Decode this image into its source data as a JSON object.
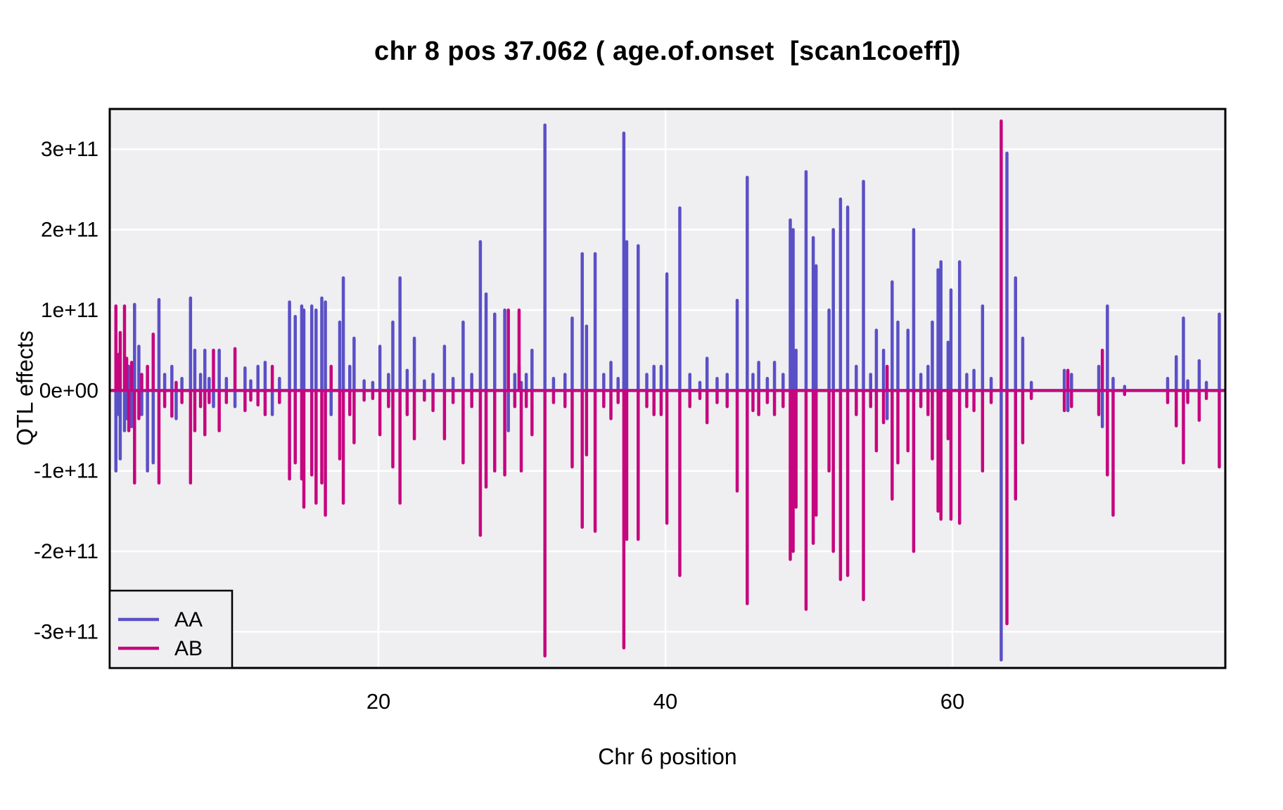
{
  "window": {
    "background": "#FFFFFF"
  },
  "chart_data": {
    "type": "line",
    "subtype": "qtl-coefficient-spike-plot",
    "title": "chr 8 pos 37.062 ( age.of.onset  [scan1coeff])",
    "xlabel": "Chr 6 position",
    "ylabel": "QTL effects",
    "xlim": [
      1.27,
      79.02
    ],
    "ylim": [
      -345000000000.0,
      350000000000.0
    ],
    "x_ticks": [
      {
        "v": 20,
        "label": "20"
      },
      {
        "v": 40,
        "label": "40"
      },
      {
        "v": 60,
        "label": "60"
      }
    ],
    "y_ticks": [
      {
        "v": 300000000000.0,
        "label": "3e+11"
      },
      {
        "v": 200000000000.0,
        "label": "2e+11"
      },
      {
        "v": 100000000000.0,
        "label": "1e+11"
      },
      {
        "v": 0,
        "label": "0e+00"
      },
      {
        "v": -100000000000.0,
        "label": "-1e+11"
      },
      {
        "v": -200000000000.0,
        "label": "-2e+11"
      },
      {
        "v": -300000000000.0,
        "label": "-3e+11"
      }
    ],
    "grid": {
      "on": true,
      "color": "#FFFFFF",
      "panel_bg": "#EFEEF0",
      "border_color": "#000000"
    },
    "legend": {
      "position": "inside-bottom-left",
      "entries": [
        {
          "label": "AA",
          "color": "#5A50C6"
        },
        {
          "label": "AB",
          "color": "#C5067F"
        }
      ]
    },
    "baseline": 0,
    "value_scale": 100000000000.0,
    "series": [
      {
        "name": "AA",
        "color": "#5A50C6"
      },
      {
        "name": "AB",
        "color": "#C5067F"
      }
    ],
    "markers_note": "Each marker is [chr6_position, AA_effect, AB_effect] with effects in units of value_scale (1e11); both series also run along the 0 baseline.",
    "markers": [
      [
        1.7,
        -1.0,
        1.05
      ],
      [
        1.9,
        -0.3,
        0.45
      ],
      [
        2.0,
        -0.85,
        0.72
      ],
      [
        2.3,
        -0.5,
        1.05
      ],
      [
        2.45,
        -0.35,
        0.4
      ],
      [
        2.6,
        0.3,
        -0.5
      ],
      [
        2.8,
        -0.45,
        0.35
      ],
      [
        3.0,
        1.07,
        -1.15
      ],
      [
        3.3,
        0.55,
        -0.35
      ],
      [
        3.5,
        -0.3,
        0.2
      ],
      [
        3.9,
        -1.0,
        0.3
      ],
      [
        4.3,
        -0.9,
        0.7
      ],
      [
        4.7,
        1.13,
        -1.15
      ],
      [
        5.1,
        0.2,
        -0.2
      ],
      [
        5.6,
        0.3,
        -0.32
      ],
      [
        5.9,
        -0.35,
        0.1
      ],
      [
        6.3,
        0.15,
        -0.15
      ],
      [
        6.9,
        1.15,
        -1.15
      ],
      [
        7.2,
        0.5,
        -0.5
      ],
      [
        7.6,
        0.2,
        -0.2
      ],
      [
        7.9,
        0.5,
        -0.55
      ],
      [
        8.2,
        0.15,
        -0.15
      ],
      [
        8.5,
        -0.2,
        0.5
      ],
      [
        8.9,
        0.5,
        -0.5
      ],
      [
        9.4,
        0.15,
        -0.15
      ],
      [
        10.0,
        -0.2,
        0.52
      ],
      [
        10.7,
        0.28,
        -0.25
      ],
      [
        11.1,
        0.12,
        -0.12
      ],
      [
        11.6,
        0.3,
        -0.18
      ],
      [
        12.1,
        0.35,
        -0.3
      ],
      [
        12.6,
        -0.3,
        0.3
      ],
      [
        13.1,
        0.15,
        -0.15
      ],
      [
        13.8,
        1.1,
        -1.1
      ],
      [
        14.2,
        0.92,
        -0.9
      ],
      [
        14.65,
        1.05,
        -1.1
      ],
      [
        14.8,
        1.0,
        -1.45
      ],
      [
        15.35,
        1.05,
        -1.05
      ],
      [
        15.65,
        1.0,
        -1.4
      ],
      [
        16.05,
        1.15,
        -1.15
      ],
      [
        16.3,
        1.1,
        -1.55
      ],
      [
        16.7,
        -0.3,
        0.3
      ],
      [
        17.3,
        0.85,
        -0.85
      ],
      [
        17.55,
        1.4,
        -1.4
      ],
      [
        18.0,
        0.3,
        -0.3
      ],
      [
        18.3,
        0.65,
        -0.65
      ],
      [
        19.0,
        0.12,
        -0.12
      ],
      [
        19.6,
        0.1,
        -0.1
      ],
      [
        20.1,
        0.55,
        -0.55
      ],
      [
        20.7,
        0.2,
        -0.2
      ],
      [
        21.0,
        0.85,
        -0.95
      ],
      [
        21.5,
        1.4,
        -1.4
      ],
      [
        22.0,
        0.25,
        -0.3
      ],
      [
        22.5,
        0.65,
        -0.6
      ],
      [
        23.2,
        0.12,
        -0.12
      ],
      [
        23.8,
        0.2,
        -0.25
      ],
      [
        24.6,
        0.55,
        -0.6
      ],
      [
        25.2,
        0.15,
        -0.15
      ],
      [
        25.9,
        0.85,
        -0.9
      ],
      [
        26.5,
        0.2,
        -0.2
      ],
      [
        27.1,
        1.85,
        -1.8
      ],
      [
        27.5,
        1.2,
        -1.2
      ],
      [
        28.1,
        0.95,
        -1.0
      ],
      [
        28.8,
        1.0,
        -1.05
      ],
      [
        29.05,
        -0.5,
        1.0
      ],
      [
        29.5,
        0.2,
        -0.2
      ],
      [
        29.8,
        0.3,
        1.0
      ],
      [
        29.95,
        0.1,
        -1.0
      ],
      [
        30.3,
        0.2,
        -0.2
      ],
      [
        30.7,
        0.5,
        -0.55
      ],
      [
        31.6,
        3.3,
        -3.3
      ],
      [
        32.2,
        0.15,
        -0.15
      ],
      [
        33.0,
        0.2,
        -0.2
      ],
      [
        33.5,
        0.9,
        -0.95
      ],
      [
        34.2,
        1.7,
        -1.7
      ],
      [
        34.5,
        0.8,
        -0.8
      ],
      [
        35.1,
        1.7,
        -1.75
      ],
      [
        35.7,
        0.2,
        -0.2
      ],
      [
        36.2,
        0.35,
        -0.35
      ],
      [
        36.7,
        0.15,
        -0.15
      ],
      [
        37.1,
        3.2,
        -3.2
      ],
      [
        37.3,
        1.85,
        -1.85
      ],
      [
        38.1,
        1.8,
        -1.85
      ],
      [
        38.7,
        0.2,
        -0.2
      ],
      [
        39.2,
        0.3,
        -0.3
      ],
      [
        39.7,
        0.3,
        -0.3
      ],
      [
        40.1,
        1.45,
        -1.65
      ],
      [
        41.0,
        2.27,
        -2.3
      ],
      [
        41.7,
        0.2,
        -0.2
      ],
      [
        42.4,
        0.1,
        -0.1
      ],
      [
        42.9,
        0.4,
        -0.4
      ],
      [
        43.6,
        0.15,
        -0.15
      ],
      [
        44.3,
        0.2,
        -0.2
      ],
      [
        45.0,
        1.12,
        -1.25
      ],
      [
        45.7,
        2.65,
        -2.65
      ],
      [
        46.1,
        0.2,
        -0.25
      ],
      [
        46.5,
        0.35,
        -0.3
      ],
      [
        47.1,
        0.15,
        -0.15
      ],
      [
        47.6,
        0.35,
        -0.3
      ],
      [
        48.2,
        0.2,
        -0.2
      ],
      [
        48.7,
        2.12,
        -2.1
      ],
      [
        48.9,
        2.0,
        -2.0
      ],
      [
        49.1,
        0.5,
        -1.45
      ],
      [
        49.8,
        2.72,
        -2.72
      ],
      [
        50.3,
        1.9,
        -1.9
      ],
      [
        50.5,
        1.55,
        -1.55
      ],
      [
        51.4,
        1.0,
        -1.0
      ],
      [
        51.7,
        2.0,
        -2.0
      ],
      [
        52.2,
        2.38,
        -2.35
      ],
      [
        52.7,
        2.28,
        -2.3
      ],
      [
        53.3,
        0.3,
        -0.3
      ],
      [
        53.8,
        2.6,
        -2.6
      ],
      [
        54.3,
        0.2,
        -0.2
      ],
      [
        54.7,
        0.75,
        -0.75
      ],
      [
        55.2,
        0.5,
        -0.4
      ],
      [
        55.45,
        -0.35,
        0.3
      ],
      [
        55.8,
        1.35,
        -1.35
      ],
      [
        56.2,
        0.85,
        -0.9
      ],
      [
        56.9,
        0.75,
        -0.75
      ],
      [
        57.3,
        2.0,
        -2.0
      ],
      [
        57.8,
        0.2,
        -0.2
      ],
      [
        58.3,
        0.3,
        -0.3
      ],
      [
        58.6,
        0.85,
        -0.85
      ],
      [
        59.0,
        1.5,
        -1.5
      ],
      [
        59.2,
        1.6,
        -1.6
      ],
      [
        59.7,
        0.6,
        -0.6
      ],
      [
        59.9,
        1.25,
        -1.6
      ],
      [
        60.5,
        1.6,
        -1.65
      ],
      [
        61.0,
        0.2,
        -0.2
      ],
      [
        61.5,
        0.25,
        -0.25
      ],
      [
        62.1,
        1.05,
        -1.0
      ],
      [
        62.7,
        0.15,
        -0.15
      ],
      [
        63.4,
        -3.35,
        3.35
      ],
      [
        63.8,
        2.95,
        -2.9
      ],
      [
        64.4,
        1.4,
        -1.35
      ],
      [
        64.9,
        0.65,
        -0.65
      ],
      [
        65.5,
        0.1,
        -0.1
      ],
      [
        67.8,
        0.25,
        -0.25
      ],
      [
        68.05,
        -0.25,
        0.25
      ],
      [
        68.3,
        0.2,
        -0.2
      ],
      [
        70.2,
        0.3,
        -0.3
      ],
      [
        70.45,
        -0.45,
        0.5
      ],
      [
        70.8,
        1.05,
        -1.05
      ],
      [
        71.2,
        0.15,
        -1.55
      ],
      [
        72.0,
        0.05,
        -0.05
      ],
      [
        75.0,
        0.15,
        -0.15
      ],
      [
        75.6,
        0.42,
        -0.44
      ],
      [
        76.1,
        0.9,
        -0.9
      ],
      [
        76.4,
        0.12,
        -0.15
      ],
      [
        77.2,
        0.37,
        -0.37
      ],
      [
        77.7,
        0.1,
        -0.1
      ],
      [
        78.6,
        0.95,
        -0.95
      ]
    ]
  }
}
